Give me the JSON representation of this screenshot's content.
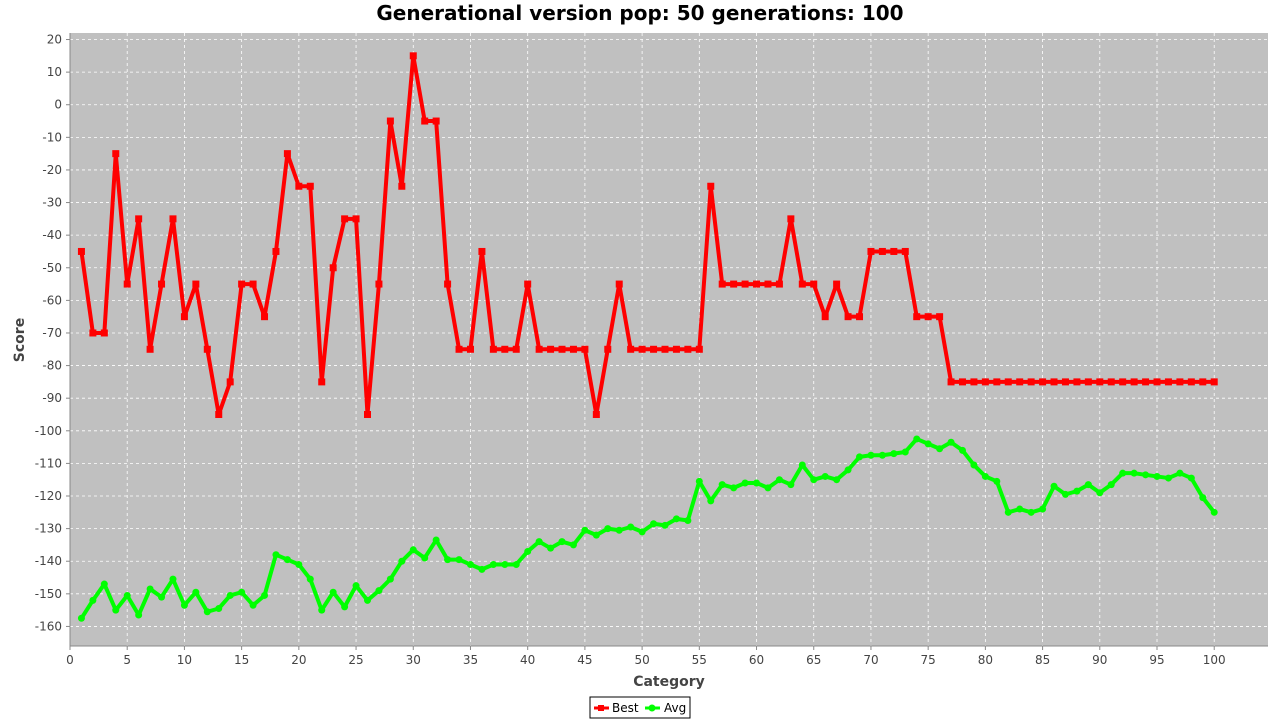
{
  "chart_data": {
    "type": "line",
    "title": "Generational version pop: 50 generations: 100",
    "xlabel": "Category",
    "ylabel": "Score",
    "xlim": [
      0,
      104.7
    ],
    "ylim": [
      -166,
      22
    ],
    "xticks": [
      0,
      5,
      10,
      15,
      20,
      25,
      30,
      35,
      40,
      45,
      50,
      55,
      60,
      65,
      70,
      75,
      80,
      85,
      90,
      95,
      100
    ],
    "yticks": [
      20,
      10,
      0,
      -10,
      -20,
      -30,
      -40,
      -50,
      -60,
      -70,
      -80,
      -90,
      -100,
      -110,
      -120,
      -130,
      -140,
      -150,
      -160
    ],
    "grid": true,
    "legend_position": "bottom",
    "series": [
      {
        "name": "Best",
        "color": "#ff0000",
        "marker": "square",
        "x_start": 1,
        "values": [
          -45,
          -70,
          -70,
          -15,
          -55,
          -35,
          -75,
          -55,
          -35,
          -65,
          -55,
          -75,
          -95,
          -85,
          -55,
          -55,
          -65,
          -45,
          -15,
          -25,
          -25,
          -85,
          -50,
          -35,
          -35,
          -95,
          -55,
          -5,
          -25,
          15,
          -5,
          -5,
          -55,
          -75,
          -75,
          -45,
          -75,
          -75,
          -75,
          -55,
          -75,
          -75,
          -75,
          -75,
          -75,
          -95,
          -75,
          -55,
          -75,
          -75,
          -75,
          -75,
          -75,
          -75,
          -75,
          -25,
          -55,
          -55,
          -55,
          -55,
          -55,
          -55,
          -35,
          -55,
          -55,
          -65,
          -55,
          -65,
          -65,
          -45,
          -45,
          -45,
          -45,
          -65,
          -65,
          -65,
          -85,
          -85,
          -85,
          -85,
          -85,
          -85,
          -85,
          -85,
          -85,
          -85,
          -85,
          -85,
          -85,
          -85,
          -85,
          -85,
          -85,
          -85,
          -85,
          -85,
          -85,
          -85,
          -85,
          -85
        ]
      },
      {
        "name": "Avg",
        "color": "#00ff00",
        "marker": "circle",
        "x_start": 1,
        "values": [
          -157.5,
          -152,
          -147,
          -155,
          -150.5,
          -156.5,
          -148.5,
          -151,
          -145.5,
          -153.5,
          -149.5,
          -155.5,
          -154.5,
          -150.5,
          -149.5,
          -153.5,
          -150.5,
          -138,
          -139.5,
          -141,
          -145.5,
          -155,
          -149.5,
          -154,
          -147.5,
          -152,
          -149,
          -145.5,
          -140,
          -136.5,
          -139,
          -133.5,
          -139.5,
          -139.5,
          -141,
          -142.5,
          -141,
          -141,
          -141,
          -137,
          -134,
          -136,
          -134,
          -135,
          -130.5,
          -132,
          -130,
          -130.5,
          -129.5,
          -131,
          -128.5,
          -129,
          -127,
          -127.5,
          -115.5,
          -121.5,
          -116.5,
          -117.5,
          -116,
          -116,
          -117.5,
          -115,
          -116.5,
          -110.5,
          -115,
          -114,
          -115,
          -112,
          -108,
          -107.5,
          -107.5,
          -107,
          -106.5,
          -102.5,
          -104,
          -105.5,
          -103.5,
          -106,
          -110.5,
          -114,
          -115.5,
          -125,
          -124,
          -125,
          -124,
          -117,
          -119.5,
          -118.5,
          -116.5,
          -119,
          -116.5,
          -113,
          -113,
          -113.5,
          -114,
          -114.5,
          -113,
          -114.5,
          -120.5,
          -125
        ]
      }
    ]
  }
}
